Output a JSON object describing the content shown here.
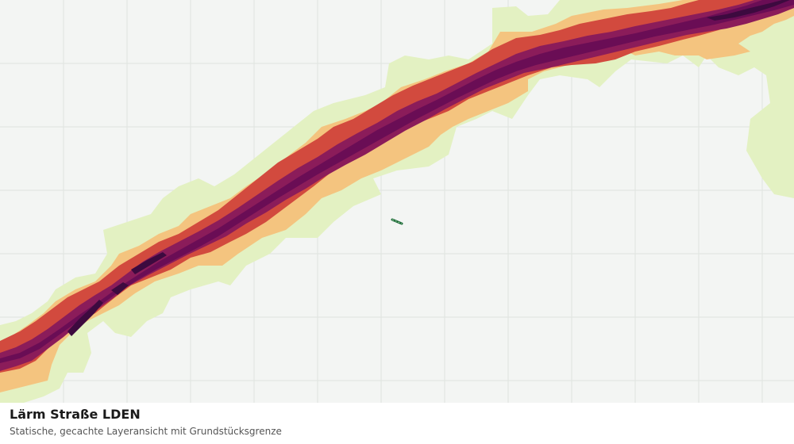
{
  "map": {
    "layer_name": "Lärm Straße LDEN",
    "description": "Statische, gecachte Layeransicht mit Grundstücksgrenze",
    "grid": true,
    "noise_band_colors": [
      "#e3f1c2",
      "#f4c47f",
      "#d24a3e",
      "#8b1c5a",
      "#6a0d55",
      "#3d0a3f"
    ],
    "background_color": "#f3f5f3",
    "parcel_color": "#1e6b3a",
    "grid_color": "#dfe3df"
  }
}
